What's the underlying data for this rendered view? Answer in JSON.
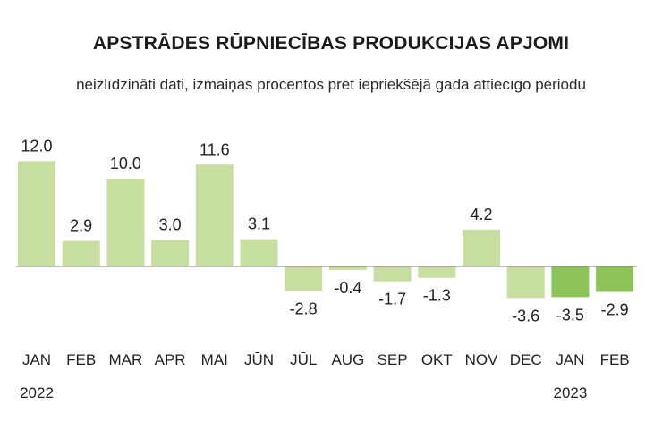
{
  "chart_data": {
    "type": "bar",
    "title": "APSTRĀDES RŪPNIECĪBAS PRODUKCIJAS APJOMI",
    "subtitle": "neizlīdzināti dati, izmaiņas procentos pret iepriekšējā gada attiecīgo periodu",
    "categories": [
      "JAN",
      "FEB",
      "MAR",
      "APR",
      "MAI",
      "JŪN",
      "JŪL",
      "AUG",
      "SEP",
      "OKT",
      "NOV",
      "DEC",
      "JAN",
      "FEB"
    ],
    "year_labels": [
      {
        "index": 0,
        "label": "2022"
      },
      {
        "index": 12,
        "label": "2023"
      }
    ],
    "values": [
      12.0,
      2.9,
      10.0,
      3.0,
      11.6,
      3.1,
      -2.8,
      -0.4,
      -1.7,
      -1.3,
      4.2,
      -3.6,
      -3.5,
      -2.9
    ],
    "value_labels": [
      "12.0",
      "2.9",
      "10.0",
      "3.0",
      "11.6",
      "3.1",
      "-2.8",
      "-0.4",
      "-1.7",
      "-1.3",
      "4.2",
      "-3.6",
      "-3.5",
      "-2.9"
    ],
    "highlight_from_index": 12,
    "colors": {
      "bar": "#c6dfa0",
      "bar_highlight": "#8ec35b",
      "zero_line": "#7a7a7a",
      "text": "#222222"
    },
    "xlabel": "",
    "ylabel": "",
    "grid": false,
    "legend": "none"
  }
}
